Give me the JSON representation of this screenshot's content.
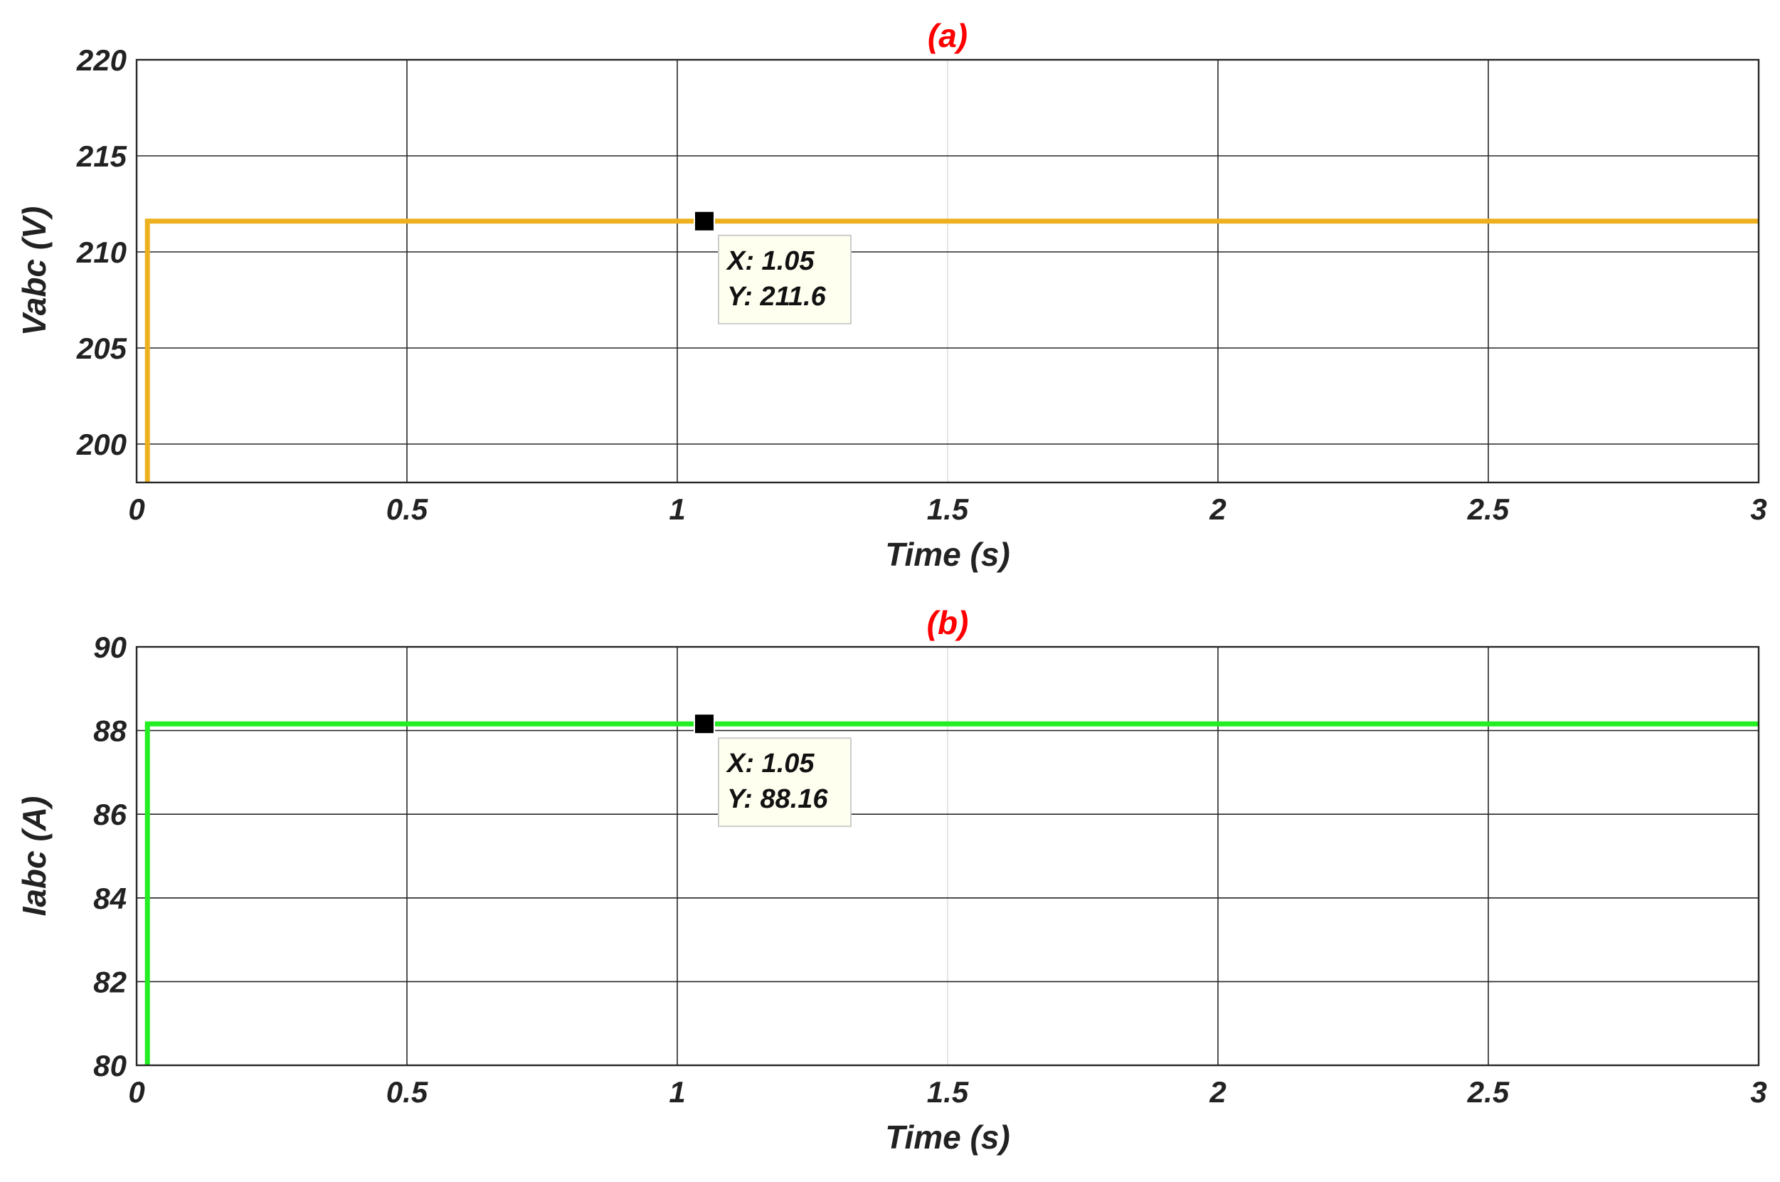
{
  "colors": {
    "grid": "#262626",
    "grid_faint": "#e6e6e6",
    "axes": "#262626",
    "tooltip_bg": "#fffff0",
    "tooltip_border": "#cccccc"
  },
  "chart_data": [
    {
      "type": "line",
      "title": "(a)",
      "xlabel": "Time (s)",
      "ylabel": "Vabc (V)",
      "xlim": [
        0,
        3
      ],
      "ylim": [
        198,
        220
      ],
      "x_ticks": [
        0,
        0.5,
        1,
        1.5,
        2,
        2.5,
        3
      ],
      "x_tick_labels": [
        "0",
        "0.5",
        "1",
        "1.5",
        "2",
        "2.5",
        "3"
      ],
      "y_ticks": [
        200,
        205,
        210,
        215,
        220
      ],
      "y_tick_labels": [
        "200",
        "205",
        "210",
        "215",
        "220"
      ],
      "grid": true,
      "series": [
        {
          "color": "#edb120",
          "x": [
            0.02,
            0.02,
            3
          ],
          "y": [
            198,
            211.6,
            211.6
          ]
        }
      ],
      "datatip": {
        "x": 1.05,
        "y": 211.6,
        "x_text": "X: 1.05",
        "y_text": "Y: 211.6"
      }
    },
    {
      "type": "line",
      "title": "(b)",
      "xlabel": "Time (s)",
      "ylabel": "Iabc (A)",
      "xlim": [
        0,
        3
      ],
      "ylim": [
        80,
        90
      ],
      "x_ticks": [
        0,
        0.5,
        1,
        1.5,
        2,
        2.5,
        3
      ],
      "x_tick_labels": [
        "0",
        "0.5",
        "1",
        "1.5",
        "2",
        "2.5",
        "3"
      ],
      "y_ticks": [
        80,
        82,
        84,
        86,
        88,
        90
      ],
      "y_tick_labels": [
        "80",
        "82",
        "84",
        "86",
        "88",
        "90"
      ],
      "grid": true,
      "series": [
        {
          "color": "#22ee22",
          "x": [
            0.02,
            0.02,
            3
          ],
          "y": [
            80,
            88.16,
            88.16
          ]
        }
      ],
      "datatip": {
        "x": 1.05,
        "y": 88.16,
        "x_text": "X: 1.05",
        "y_text": "Y: 88.16"
      }
    }
  ]
}
